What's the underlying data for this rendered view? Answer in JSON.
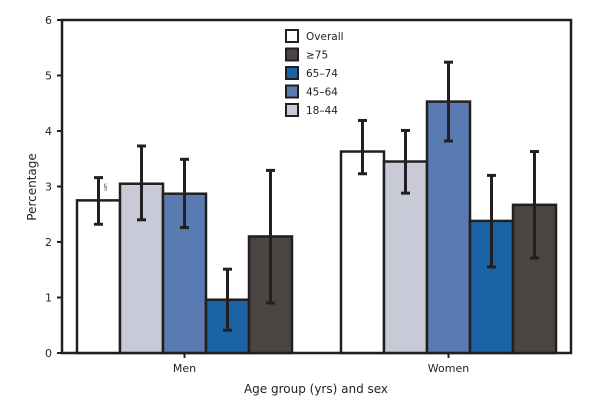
{
  "chart_data": {
    "type": "bar",
    "title": "",
    "xlabel": "Age group (yrs) and sex",
    "ylabel": "Percentage",
    "ylim": [
      0,
      6
    ],
    "yticks": [
      0,
      1,
      2,
      3,
      4,
      5,
      6
    ],
    "grid": false,
    "legend_position": "top-center",
    "categories": [
      "Men",
      "Women"
    ],
    "series": [
      {
        "name": "Overall",
        "color": "#ffffff",
        "values": [
          2.75,
          3.63
        ],
        "ci_low": [
          2.32,
          3.23
        ],
        "ci_high": [
          3.16,
          4.19
        ]
      },
      {
        "name": "18–44",
        "color": "#c8cad8",
        "values": [
          3.05,
          3.45
        ],
        "ci_low": [
          2.4,
          2.88
        ],
        "ci_high": [
          3.73,
          4.01
        ]
      },
      {
        "name": "45–64",
        "color": "#5a7ab2",
        "values": [
          2.87,
          4.53
        ],
        "ci_low": [
          2.26,
          3.82
        ],
        "ci_high": [
          3.49,
          5.24
        ]
      },
      {
        "name": "65–74",
        "color": "#1a64a4",
        "values": [
          0.96,
          2.38
        ],
        "ci_low": [
          0.41,
          1.55
        ],
        "ci_high": [
          1.51,
          3.2
        ]
      },
      {
        "name": "≥75",
        "color": "#4a4540",
        "values": [
          2.1,
          2.67
        ],
        "ci_low": [
          0.9,
          1.71
        ],
        "ci_high": [
          3.29,
          3.63
        ]
      }
    ],
    "legend_order": [
      "Overall",
      "≥75",
      "65–74",
      "45–64",
      "18–44"
    ],
    "annotations": [
      {
        "text": "§",
        "category": "Men",
        "series": "Overall"
      }
    ]
  }
}
